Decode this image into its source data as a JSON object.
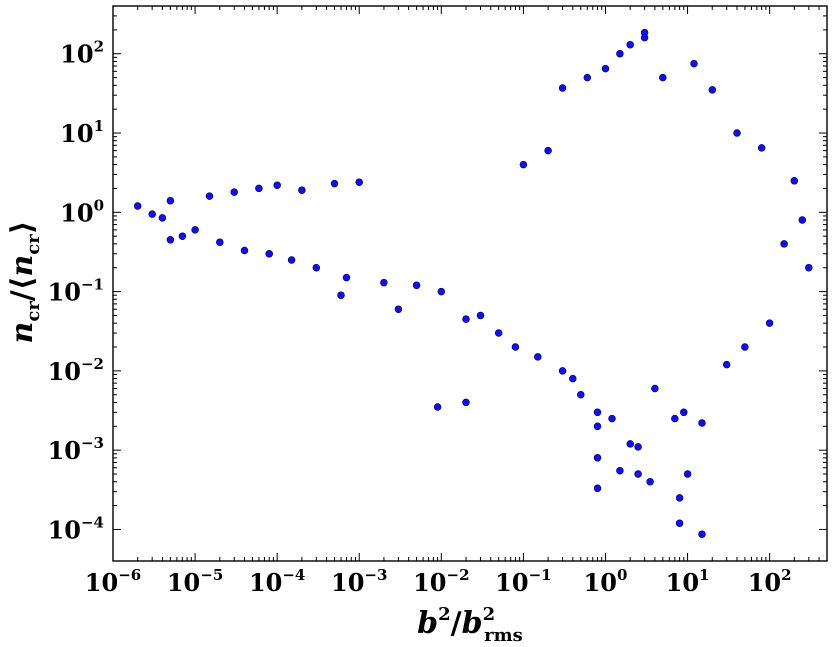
{
  "chart_data": {
    "type": "scatter",
    "title": "",
    "x_scale": "log",
    "y_scale": "log",
    "xlim": [
      1e-06,
      500
    ],
    "ylim": [
      4e-05,
      400
    ],
    "grid": false,
    "legend": "none",
    "xlabel": {
      "base": "b",
      "sup": "2",
      "sep": "/",
      "base2": "b",
      "sub2": "rms",
      "sup2": "2"
    },
    "ylabel": {
      "base": "n",
      "sub": "cr",
      "sep": "/⟨",
      "base2": "n",
      "sub2": "cr",
      "close": "⟩"
    },
    "x_ticks": [
      {
        "base": "10",
        "exp": "−6",
        "value": 1e-06
      },
      {
        "base": "10",
        "exp": "−5",
        "value": 1e-05
      },
      {
        "base": "10",
        "exp": "−4",
        "value": 0.0001
      },
      {
        "base": "10",
        "exp": "−3",
        "value": 0.001
      },
      {
        "base": "10",
        "exp": "−2",
        "value": 0.01
      },
      {
        "base": "10",
        "exp": "−1",
        "value": 0.1
      },
      {
        "base": "10",
        "exp": "0",
        "value": 1
      },
      {
        "base": "10",
        "exp": "1",
        "value": 10
      },
      {
        "base": "10",
        "exp": "2",
        "value": 100
      }
    ],
    "y_ticks": [
      {
        "base": "10",
        "exp": "−4",
        "value": 0.0001
      },
      {
        "base": "10",
        "exp": "−3",
        "value": 0.001
      },
      {
        "base": "10",
        "exp": "−2",
        "value": 0.01
      },
      {
        "base": "10",
        "exp": "−1",
        "value": 0.1
      },
      {
        "base": "10",
        "exp": "0",
        "value": 1
      },
      {
        "base": "10",
        "exp": "1",
        "value": 10
      },
      {
        "base": "10",
        "exp": "2",
        "value": 100
      }
    ],
    "marker_color": "#1010ee",
    "marker_edge": "#000066",
    "series": [
      {
        "points": [
          [
            2e-06,
            1.2
          ],
          [
            3e-06,
            0.95
          ],
          [
            4e-06,
            0.85
          ],
          [
            5e-06,
            1.4
          ],
          [
            5e-06,
            0.45
          ],
          [
            7e-06,
            0.5
          ],
          [
            1e-05,
            0.6
          ],
          [
            1.5e-05,
            1.6
          ],
          [
            2e-05,
            0.42
          ],
          [
            3e-05,
            1.8
          ],
          [
            4e-05,
            0.33
          ],
          [
            6e-05,
            2.0
          ],
          [
            8e-05,
            0.3
          ],
          [
            0.0001,
            2.2
          ],
          [
            0.00015,
            0.25
          ],
          [
            0.0002,
            1.9
          ],
          [
            0.0003,
            0.2
          ],
          [
            0.0005,
            2.3
          ],
          [
            0.0006,
            0.09
          ],
          [
            0.0007,
            0.15
          ],
          [
            0.001,
            2.4
          ],
          [
            0.002,
            0.13
          ],
          [
            0.003,
            0.06
          ],
          [
            0.005,
            0.12
          ],
          [
            0.009,
            0.0035
          ],
          [
            0.01,
            0.1
          ],
          [
            0.02,
            0.045
          ],
          [
            0.02,
            0.004
          ],
          [
            0.03,
            0.05
          ],
          [
            0.05,
            0.03
          ],
          [
            0.08,
            0.02
          ],
          [
            0.1,
            4.0
          ],
          [
            0.15,
            0.015
          ],
          [
            0.2,
            6.0
          ],
          [
            0.3,
            0.01
          ],
          [
            0.3,
            37
          ],
          [
            0.4,
            0.008
          ],
          [
            0.5,
            0.005
          ],
          [
            0.6,
            50
          ],
          [
            0.8,
            0.003
          ],
          [
            0.8,
            0.002
          ],
          [
            0.8,
            0.0008
          ],
          [
            0.8,
            0.00033
          ],
          [
            1.0,
            65
          ],
          [
            1.2,
            0.0025
          ],
          [
            1.5,
            0.00055
          ],
          [
            1.5,
            100
          ],
          [
            2.0,
            0.0012
          ],
          [
            2.0,
            130
          ],
          [
            2.5,
            0.0011
          ],
          [
            2.5,
            0.0005
          ],
          [
            3.0,
            185
          ],
          [
            3.0,
            160
          ],
          [
            3.5,
            0.0004
          ],
          [
            4.0,
            0.006
          ],
          [
            5.0,
            50
          ],
          [
            7.0,
            0.0025
          ],
          [
            8.0,
            0.00025
          ],
          [
            8.0,
            0.00012
          ],
          [
            9.0,
            0.003
          ],
          [
            10,
            0.0005
          ],
          [
            12,
            75
          ],
          [
            15,
            0.0022
          ],
          [
            15,
            8.7e-05
          ],
          [
            20,
            35
          ],
          [
            30,
            0.012
          ],
          [
            40,
            10
          ],
          [
            50,
            0.02
          ],
          [
            80,
            6.5
          ],
          [
            100,
            0.04
          ],
          [
            150,
            0.4
          ],
          [
            200,
            2.5
          ],
          [
            250,
            0.8
          ],
          [
            300,
            0.2
          ]
        ]
      }
    ]
  }
}
